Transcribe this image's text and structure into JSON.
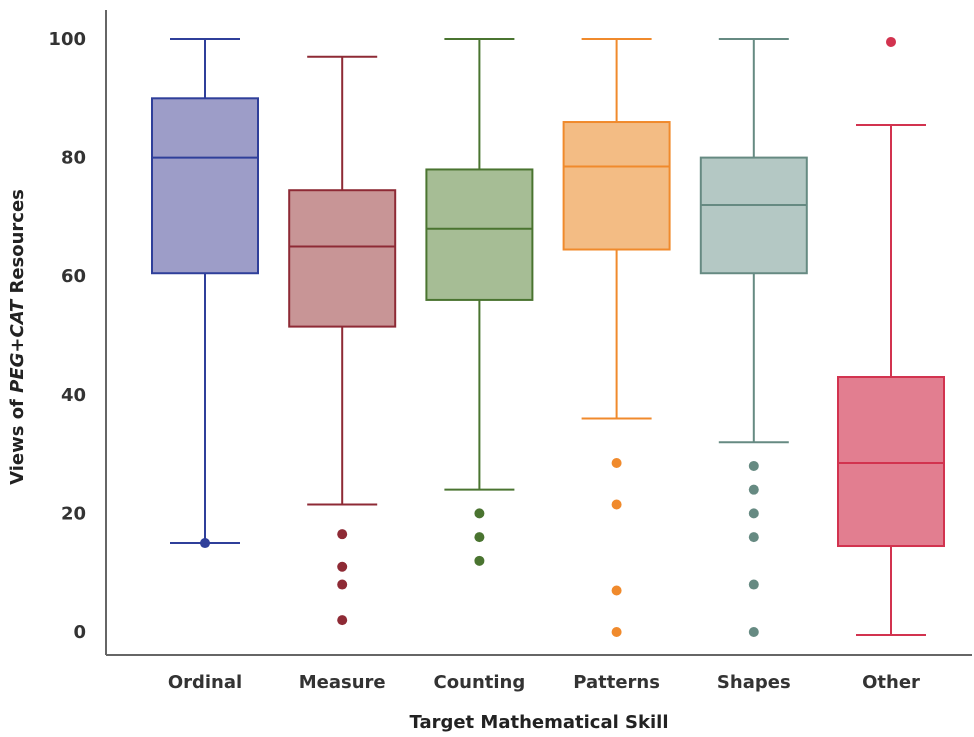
{
  "chart_data": {
    "type": "box",
    "title": "",
    "xlabel": "Target Mathematical Skill",
    "ylabel_parts": {
      "prefix": "Views of ",
      "emphasis": "PEG+CAT",
      "suffix": " Resources"
    },
    "ylim": [
      -3,
      106
    ],
    "yticks": [
      0,
      20,
      40,
      60,
      80,
      100
    ],
    "grid": false,
    "legend": "none",
    "categories": [
      "Ordinal",
      "Measure",
      "Counting",
      "Patterns",
      "Shapes",
      "Other"
    ],
    "series": [
      {
        "category": "Ordinal",
        "color": "#2f3f9a",
        "fill": "#9d9dc8",
        "whisker_low": 15,
        "q1": 60.5,
        "median": 80,
        "q3": 90,
        "whisker_high": 100,
        "outliers": [
          15
        ]
      },
      {
        "category": "Measure",
        "color": "#8e2a35",
        "fill": "#c89596",
        "whisker_low": 21.5,
        "q1": 51.5,
        "median": 65,
        "q3": 74.5,
        "whisker_high": 97,
        "outliers": [
          2,
          8,
          11,
          16.5
        ]
      },
      {
        "category": "Counting",
        "color": "#4a7430",
        "fill": "#a6bd95",
        "whisker_low": 24,
        "q1": 56,
        "median": 68,
        "q3": 78,
        "whisker_high": 100,
        "outliers": [
          12,
          16,
          20
        ]
      },
      {
        "category": "Patterns",
        "color": "#f08a2c",
        "fill": "#f3bc84",
        "whisker_low": 36,
        "q1": 64.5,
        "median": 78.5,
        "q3": 86,
        "whisker_high": 100,
        "outliers": [
          0,
          7,
          21.5,
          28.5
        ]
      },
      {
        "category": "Shapes",
        "color": "#668a82",
        "fill": "#b4c8c4",
        "whisker_low": 32,
        "q1": 60.5,
        "median": 72,
        "q3": 80,
        "whisker_high": 100,
        "outliers": [
          0,
          8,
          16,
          20,
          24,
          28
        ]
      },
      {
        "category": "Other",
        "color": "#d2334f",
        "fill": "#e27e90",
        "whisker_low": -0.5,
        "q1": 14.5,
        "median": 28.5,
        "q3": 43,
        "whisker_high": 85.5,
        "outliers": [
          99.5
        ]
      }
    ]
  }
}
